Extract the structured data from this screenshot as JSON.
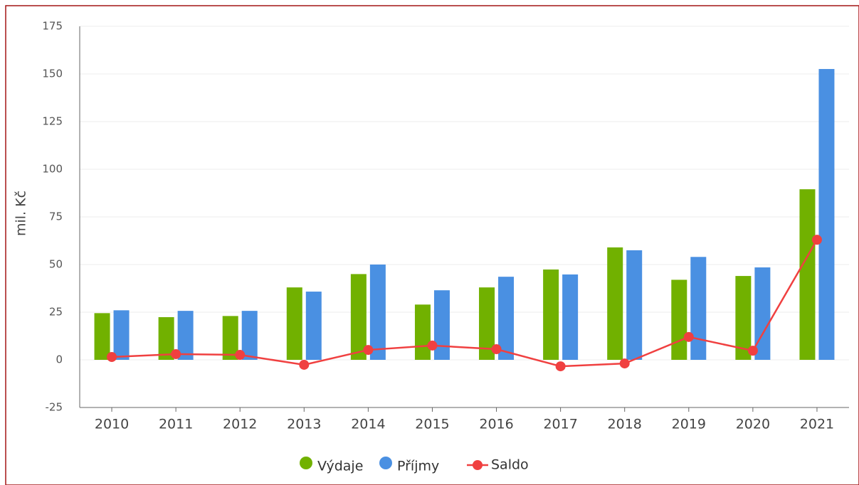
{
  "chart_data": {
    "type": "bar",
    "y_label": "mil. Kč",
    "categories": [
      "2010",
      "2011",
      "2012",
      "2013",
      "2014",
      "2015",
      "2016",
      "2017",
      "2018",
      "2019",
      "2020",
      "2021"
    ],
    "series": [
      {
        "name": "Výdaje",
        "color": "#71b100",
        "type": "bar",
        "values": [
          24.5,
          22.4,
          23,
          38,
          45,
          29,
          38,
          47.4,
          59,
          42,
          44,
          89.5
        ]
      },
      {
        "name": "Příjmy",
        "color": "#4a90e2",
        "type": "bar",
        "values": [
          26,
          25.7,
          25.7,
          35.8,
          50,
          36.5,
          43.6,
          44.8,
          57.5,
          54,
          48.5,
          152.6
        ]
      },
      {
        "name": "Saldo",
        "color": "#f04040",
        "type": "line",
        "values": [
          1.5,
          3,
          2.6,
          -2.6,
          5.2,
          7.5,
          5.6,
          -3.4,
          -1.9,
          12,
          4.8,
          63
        ]
      }
    ],
    "ylim": [
      -25,
      175
    ],
    "yticks": [
      -25,
      0,
      25,
      50,
      75,
      100,
      125,
      150,
      175
    ],
    "grid": true,
    "legend": "bottom"
  }
}
